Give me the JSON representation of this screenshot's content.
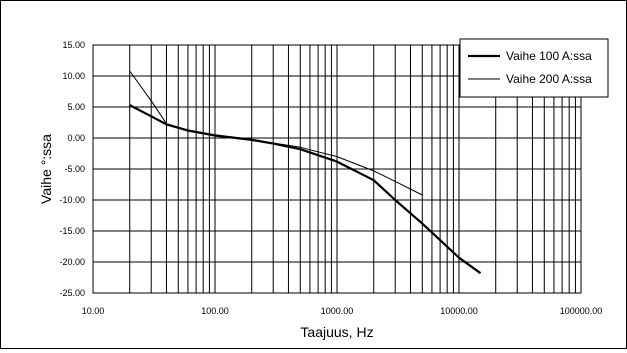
{
  "chart_data": {
    "type": "line",
    "xscale": "log",
    "xlim": [
      10,
      100000
    ],
    "ylim": [
      -25,
      15
    ],
    "xticks": [
      "10.00",
      "100.00",
      "1000.00",
      "10000.00",
      "100000.00"
    ],
    "yticks": [
      "15.00",
      "10.00",
      "5.00",
      "0.00",
      "-5.00",
      "-10.00",
      "-15.00",
      "-20.00",
      "-25.00"
    ],
    "xlabel": "Taajuus, Hz",
    "ylabel": "Vaihe °:ssa",
    "grid": true,
    "legend_position": "top-right",
    "series": [
      {
        "name": "Vaihe 100 A:ssa",
        "line": "thick",
        "color": "#000000",
        "x": [
          20,
          30,
          40,
          60,
          100,
          200,
          300,
          500,
          1000,
          2000,
          3000,
          5000,
          10000,
          15000
        ],
        "y": [
          5.3,
          3.5,
          2.2,
          1.2,
          0.4,
          -0.3,
          -0.9,
          -1.8,
          -3.8,
          -6.8,
          -10.0,
          -13.8,
          -19.3,
          -21.8
        ]
      },
      {
        "name": "Vaihe 200 A:ssa",
        "line": "thin",
        "color": "#000000",
        "x": [
          20,
          30,
          40,
          60,
          100,
          200,
          300,
          500,
          1000,
          2000,
          3000,
          5000
        ],
        "y": [
          10.8,
          6.0,
          2.3,
          1.3,
          0.5,
          -0.2,
          -0.8,
          -1.5,
          -3.0,
          -5.3,
          -7.0,
          -9.2
        ]
      }
    ]
  }
}
